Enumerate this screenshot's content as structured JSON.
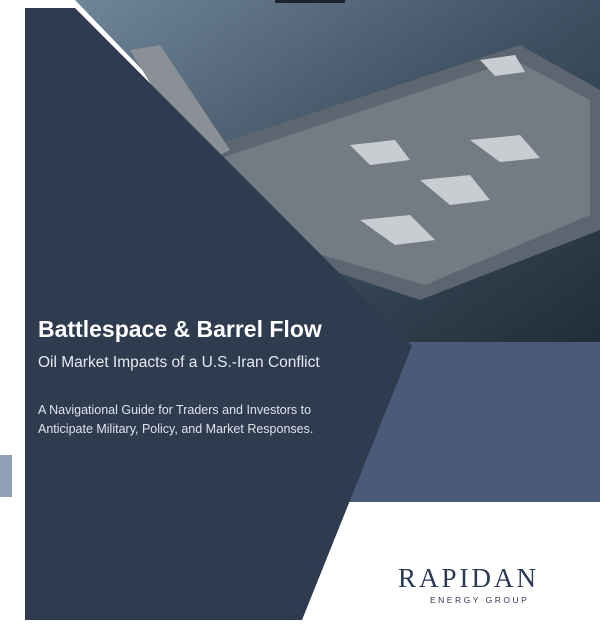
{
  "cover": {
    "title": "Battlespace & Barrel Flow",
    "subtitle": "Oil Market Impacts of a U.S.-Iran Conflict",
    "description_lines": [
      "A Navigational Guide for Traders and Investors to",
      "Anticipate Military, Policy, and Market Responses."
    ],
    "logo": {
      "name": "RAPIDAN",
      "tagline": "ENERGY GROUP"
    }
  }
}
